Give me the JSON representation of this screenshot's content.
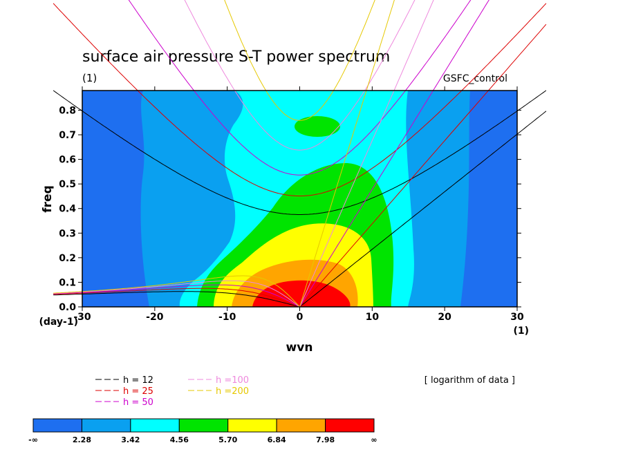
{
  "chart_data": {
    "type": "heatmap",
    "title": "surface air pressure S-T power spectrum",
    "units_label": "(1)",
    "dataset": "GSFC_control",
    "xlabel": "wvn",
    "ylabel": "freq",
    "x_units": "(1)",
    "y_units": "(day-1)",
    "xlim": [
      -30,
      30
    ],
    "ylim": [
      0,
      0.88
    ],
    "xticks": [
      -30,
      -20,
      -10,
      0,
      10,
      20,
      30
    ],
    "yticks": [
      0.0,
      0.1,
      0.2,
      0.3,
      0.4,
      0.5,
      0.6,
      0.7,
      0.8
    ],
    "note": "[ logarithm of data ]",
    "colorbar": {
      "levels": [
        "-∞",
        "2.28",
        "3.42",
        "4.56",
        "5.70",
        "6.84",
        "7.98",
        "∞"
      ],
      "colors": [
        "#1e6ff0",
        "#0aa0f0",
        "#00ffff",
        "#00e400",
        "#ffff00",
        "#ffa500",
        "#ff0000"
      ]
    },
    "dispersion_curves": [
      {
        "label": "h = 12",
        "h": 12,
        "color": "#000000"
      },
      {
        "label": "h = 25",
        "h": 25,
        "color": "#dd0000"
      },
      {
        "label": "h = 50",
        "h": 50,
        "color": "#cc00cc"
      },
      {
        "label": "h =100",
        "h": 100,
        "color": "#ee88dd"
      },
      {
        "label": "h =200",
        "h": 200,
        "color": "#e6c800"
      }
    ]
  }
}
